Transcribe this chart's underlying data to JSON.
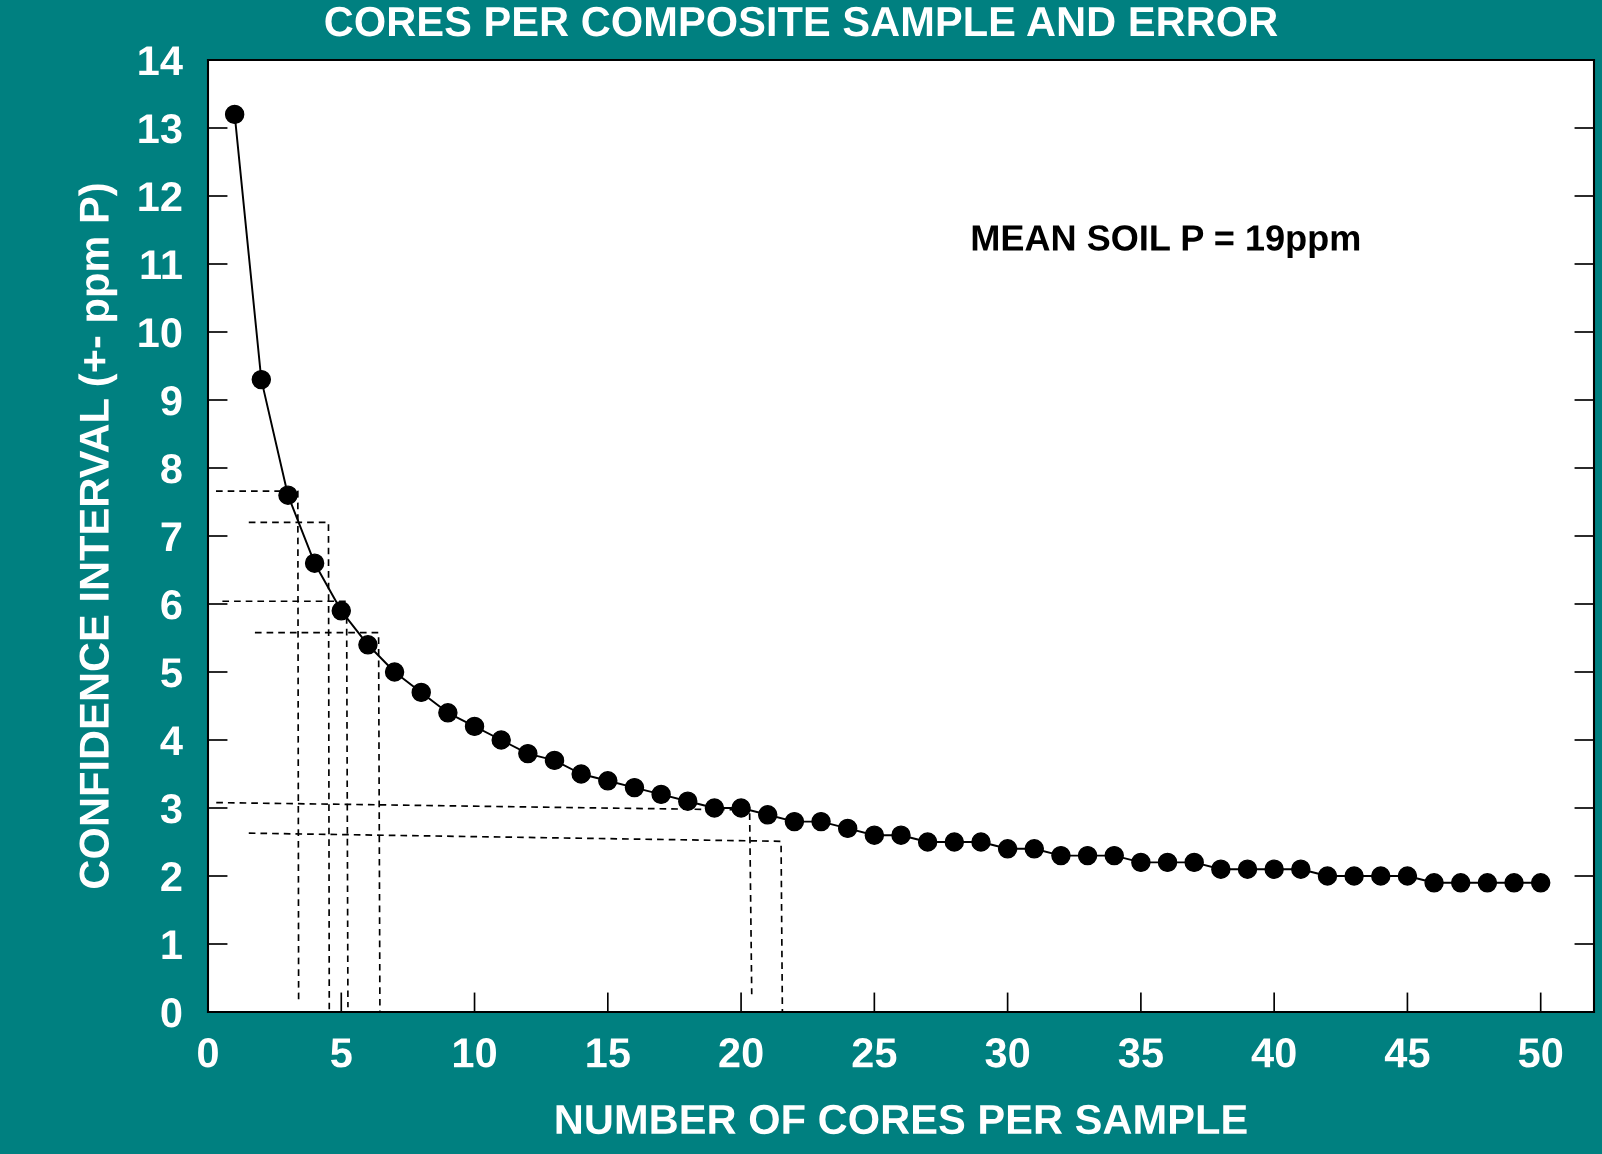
{
  "chart_data": {
    "type": "line",
    "title": "CORES PER COMPOSITE SAMPLE AND ERROR",
    "xlabel": "NUMBER OF CORES PER SAMPLE",
    "ylabel": "CONFIDENCE INTERVAL (+- ppm P)",
    "annotations": [
      "MEAN SOIL P = 19ppm"
    ],
    "xlim": [
      0,
      52
    ],
    "xticks": [
      0,
      5,
      10,
      15,
      20,
      25,
      30,
      35,
      40,
      45,
      50
    ],
    "ylim": [
      0,
      14
    ],
    "yticks": [
      0,
      1,
      2,
      3,
      4,
      5,
      6,
      7,
      8,
      9,
      10,
      11,
      12,
      13,
      14
    ],
    "grid": false,
    "legend": false,
    "series": [
      {
        "color": "#000000",
        "marker": "circle",
        "line_style": "solid",
        "x": [
          1,
          2,
          3,
          4,
          5,
          6,
          7,
          8,
          9,
          10,
          11,
          12,
          13,
          14,
          15,
          16,
          17,
          18,
          19,
          20,
          21,
          22,
          23,
          24,
          25,
          26,
          27,
          28,
          29,
          30,
          31,
          32,
          33,
          34,
          35,
          36,
          37,
          38,
          39,
          40,
          41,
          42,
          43,
          44,
          45,
          46,
          47,
          48,
          49,
          50
        ],
        "values": [
          13.2,
          9.3,
          7.6,
          6.6,
          5.9,
          5.4,
          5.0,
          4.7,
          4.4,
          4.2,
          4.0,
          3.8,
          3.7,
          3.5,
          3.4,
          3.3,
          3.2,
          3.1,
          3.0,
          3.0,
          2.9,
          2.8,
          2.8,
          2.7,
          2.6,
          2.6,
          2.5,
          2.5,
          2.5,
          2.4,
          2.4,
          2.3,
          2.3,
          2.3,
          2.2,
          2.2,
          2.2,
          2.1,
          2.1,
          2.1,
          2.1,
          2.0,
          2.0,
          2.0,
          2.0,
          1.9,
          1.9,
          1.9,
          1.9,
          1.9
        ]
      },
      {
        "color": "#000000",
        "marker": "none",
        "line_style": "dashed",
        "x": [
          0.3,
          3.37,
          3.4
        ],
        "values": [
          7.66,
          7.66,
          0.15
        ]
      },
      {
        "color": "#000000",
        "marker": "none",
        "line_style": "dashed",
        "x": [
          1.53,
          4.52,
          4.55
        ],
        "values": [
          7.2,
          7.2,
          0
        ]
      },
      {
        "color": "#000000",
        "marker": "none",
        "line_style": "dashed",
        "x": [
          0.54,
          5.2,
          5.25
        ],
        "values": [
          6.04,
          6.04,
          0.07
        ]
      },
      {
        "color": "#000000",
        "marker": "none",
        "line_style": "dashed",
        "x": [
          1.76,
          6.4,
          6.45
        ],
        "values": [
          5.58,
          5.58,
          0
        ]
      },
      {
        "color": "#000000",
        "marker": "none",
        "line_style": "dashed",
        "x": [
          0.31,
          20.32,
          20.4
        ],
        "values": [
          3.08,
          2.97,
          0.26
        ]
      },
      {
        "color": "#000000",
        "marker": "none",
        "line_style": "dashed",
        "x": [
          1.53,
          21.5,
          21.55
        ],
        "values": [
          2.63,
          2.51,
          0
        ]
      }
    ]
  }
}
